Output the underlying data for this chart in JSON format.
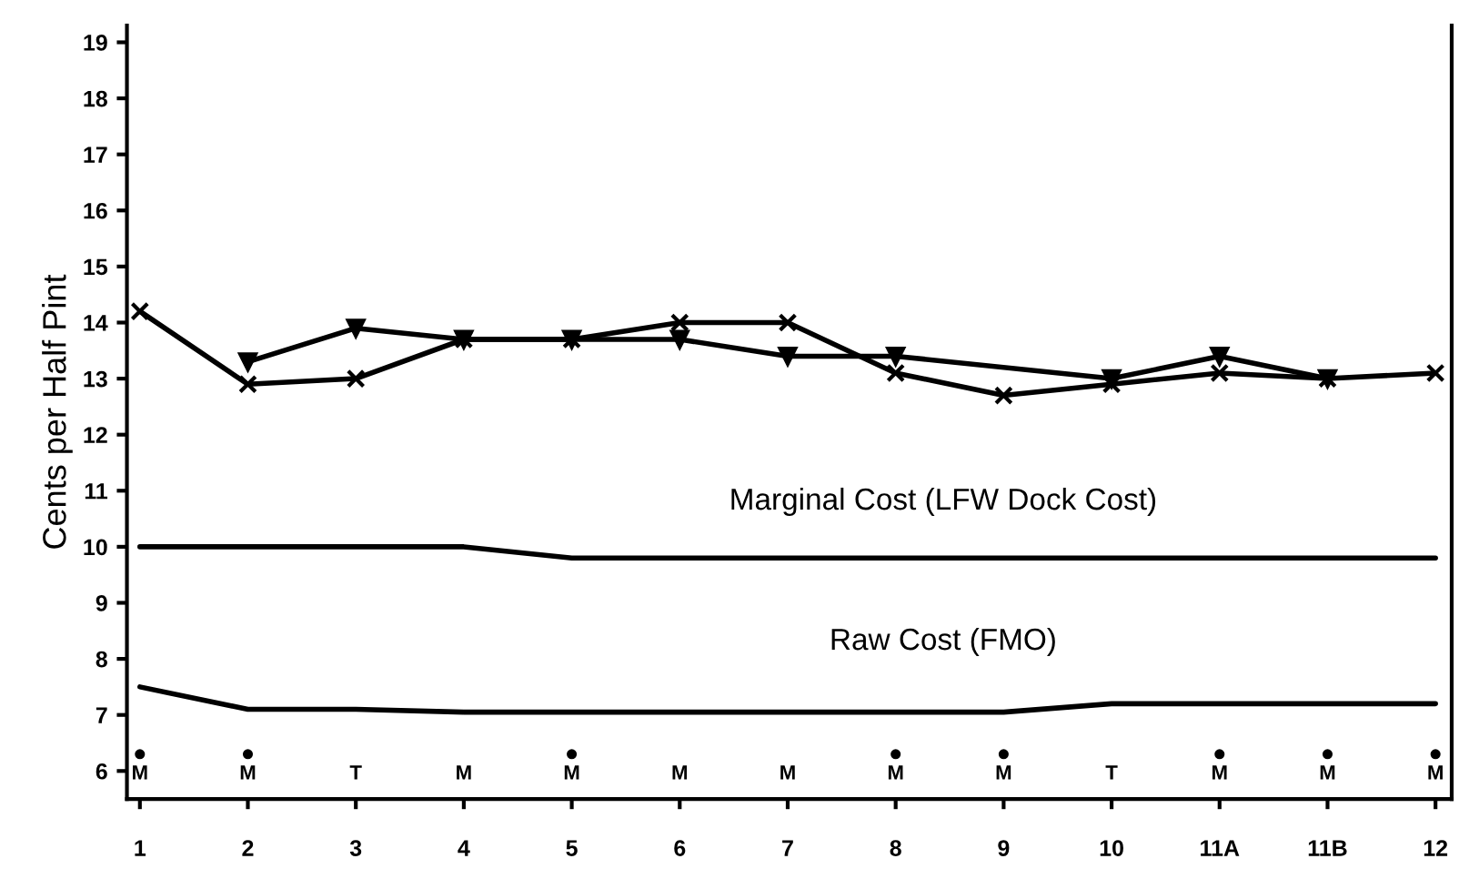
{
  "chart_data": {
    "type": "line",
    "ylabel": "Cents per Half Pint",
    "categories": [
      "1",
      "2",
      "3",
      "4",
      "5",
      "6",
      "7",
      "8",
      "9",
      "10",
      "11A",
      "11B",
      "12"
    ],
    "ylim": [
      5.5,
      19.3
    ],
    "yticks": [
      6,
      7,
      8,
      9,
      10,
      11,
      12,
      13,
      14,
      15,
      16,
      17,
      18,
      19
    ],
    "grid": false,
    "legend": false,
    "series": [
      {
        "color": "#000000",
        "marker": "cross",
        "values": [
          14.2,
          12.9,
          13.0,
          13.7,
          13.7,
          14.0,
          14.0,
          13.1,
          12.7,
          12.9,
          13.1,
          13.0,
          13.1
        ]
      },
      {
        "color": "#000000",
        "marker": "triangle",
        "values": [
          null,
          13.3,
          13.9,
          13.7,
          13.7,
          13.7,
          13.4,
          13.4,
          null,
          13.0,
          13.4,
          13.0,
          null
        ]
      },
      {
        "name": "Marginal Cost (LFW Dock Cost)",
        "color": "#000000",
        "marker": "none",
        "values": [
          10.0,
          10.0,
          10.0,
          10.0,
          9.8,
          9.8,
          9.8,
          9.8,
          9.8,
          9.8,
          9.8,
          9.8,
          9.8
        ]
      },
      {
        "name": "Raw Cost (FMO)",
        "color": "#000000",
        "marker": "none",
        "values": [
          7.5,
          7.1,
          7.1,
          7.05,
          7.05,
          7.05,
          7.05,
          7.05,
          7.05,
          7.2,
          7.2,
          7.2,
          7.2
        ]
      },
      {
        "type": "scatter",
        "color": "#000000",
        "marker": "circle",
        "values": [
          6.3,
          6.3,
          null,
          null,
          6.3,
          null,
          null,
          6.3,
          6.3,
          null,
          6.3,
          6.3,
          6.3
        ]
      }
    ],
    "annotations": [
      "M",
      "M",
      "T",
      "M",
      "M",
      "M",
      "M",
      "M",
      "M",
      "T",
      "M",
      "M",
      "M"
    ]
  }
}
